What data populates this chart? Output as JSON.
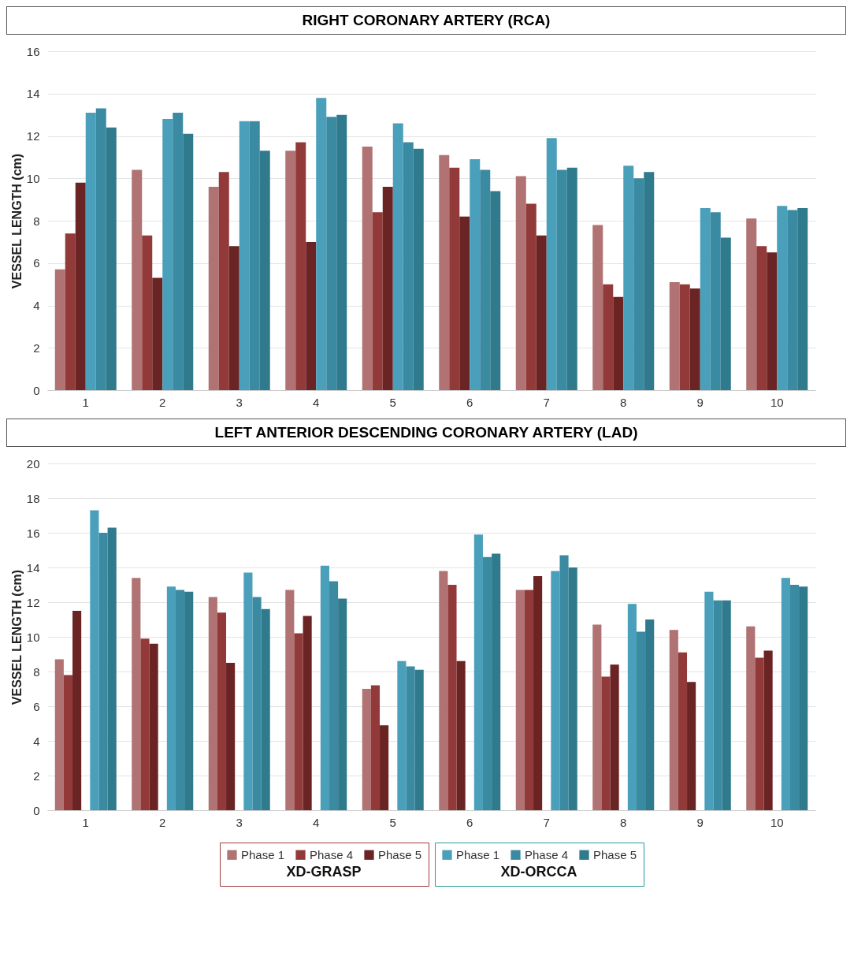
{
  "chart_data": [
    {
      "type": "bar",
      "title": "RIGHT CORONARY ARTERY (RCA)",
      "ylabel": "VESSEL LENGTH (cm)",
      "categories": [
        "1",
        "2",
        "3",
        "4",
        "5",
        "6",
        "7",
        "8",
        "9",
        "10"
      ],
      "ylim": [
        0,
        16
      ],
      "yticks": [
        0,
        2,
        4,
        6,
        8,
        10,
        12,
        14,
        16
      ],
      "grid": "y",
      "series": [
        {
          "color": "#b07272",
          "values": [
            5.7,
            10.4,
            9.6,
            11.3,
            11.5,
            11.1,
            10.1,
            7.8,
            5.1,
            8.1
          ]
        },
        {
          "color": "#923a3a",
          "values": [
            7.4,
            7.3,
            10.3,
            11.7,
            8.4,
            10.5,
            8.8,
            5.0,
            5.0,
            6.8
          ]
        },
        {
          "color": "#6b2424",
          "values": [
            9.8,
            5.3,
            6.8,
            7.0,
            9.6,
            8.2,
            7.3,
            4.4,
            4.8,
            6.5
          ]
        },
        {
          "color": "#4a9fba",
          "values": [
            13.1,
            12.8,
            12.7,
            13.8,
            12.6,
            10.9,
            11.9,
            10.6,
            8.6,
            8.7
          ]
        },
        {
          "color": "#3a8aa2",
          "values": [
            13.3,
            13.1,
            12.7,
            12.9,
            11.7,
            10.4,
            10.4,
            10.0,
            8.4,
            8.5
          ]
        },
        {
          "color": "#2f7a8c",
          "values": [
            12.4,
            12.1,
            11.3,
            13.0,
            11.4,
            9.4,
            10.5,
            10.3,
            7.2,
            8.6
          ]
        }
      ]
    },
    {
      "type": "bar",
      "title": "LEFT ANTERIOR DESCENDING CORONARY ARTERY (LAD)",
      "ylabel": "VESSEL LENGTH (cm)",
      "categories": [
        "1",
        "2",
        "3",
        "4",
        "5",
        "6",
        "7",
        "8",
        "9",
        "10"
      ],
      "ylim": [
        0,
        20
      ],
      "yticks": [
        0,
        2,
        4,
        6,
        8,
        10,
        12,
        14,
        16,
        18,
        20
      ],
      "grid": "y",
      "legend": "bottom",
      "annotations": [
        "XD-GRASP",
        "XD-ORCCA"
      ],
      "series": [
        {
          "name": "Phase 1",
          "color": "#b07272",
          "values": [
            8.7,
            13.4,
            12.3,
            12.7,
            7.0,
            13.8,
            12.7,
            10.7,
            10.4,
            10.6
          ]
        },
        {
          "name": "Phase 4",
          "color": "#923a3a",
          "values": [
            7.8,
            9.9,
            11.4,
            10.2,
            7.2,
            13.0,
            12.7,
            7.7,
            9.1,
            8.8
          ]
        },
        {
          "name": "Phase 5",
          "color": "#6b2424",
          "values": [
            11.5,
            9.6,
            8.5,
            11.2,
            4.9,
            8.6,
            13.5,
            8.4,
            7.4,
            9.2
          ]
        },
        {
          "name": "Phase 1",
          "color": "#4a9fba",
          "values": [
            17.3,
            12.9,
            13.7,
            14.1,
            8.6,
            15.9,
            13.8,
            11.9,
            12.6,
            13.4
          ]
        },
        {
          "name": "Phase 4",
          "color": "#3a8aa2",
          "values": [
            16.0,
            12.7,
            12.3,
            13.2,
            8.3,
            14.6,
            14.7,
            10.3,
            12.1,
            13.0
          ]
        },
        {
          "name": "Phase 5",
          "color": "#2f7a8c",
          "values": [
            16.3,
            12.6,
            11.6,
            12.2,
            8.1,
            14.8,
            14.0,
            11.0,
            12.1,
            12.9
          ]
        }
      ]
    }
  ]
}
